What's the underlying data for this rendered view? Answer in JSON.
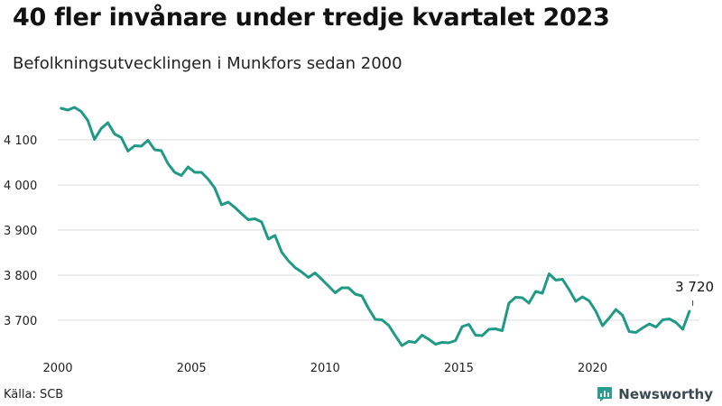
{
  "header": {
    "title": "40 fler invånare under tredje kvartalet 2023",
    "subtitle": "Befolkningsutvecklingen i Munkfors sedan 2000"
  },
  "footer": {
    "source": "Källa: SCB",
    "brand": "Newsworthy"
  },
  "colors": {
    "line": "#1f9a85",
    "grid": "#dcdcdc",
    "brand_icon": "#2a9d8f"
  },
  "chart_data": {
    "type": "line",
    "title": "40 fler invånare under tredje kvartalet 2023",
    "subtitle": "Befolkningsutvecklingen i Munkfors sedan 2000",
    "xlabel": "",
    "ylabel": "",
    "xlim": [
      2000,
      2024
    ],
    "ylim": [
      3620,
      4200
    ],
    "x_ticks": [
      2000,
      2005,
      2010,
      2015,
      2020
    ],
    "x_tick_labels": [
      "2000",
      "2005",
      "2010",
      "2015",
      "2020"
    ],
    "y_ticks": [
      3700,
      3800,
      3900,
      4000,
      4100
    ],
    "y_tick_labels": [
      "3 700",
      "3 800",
      "3 900",
      "4 000",
      "4 100"
    ],
    "grid": "horizontal",
    "annotation": {
      "x": 2023.75,
      "y": 3720,
      "text": "3 720"
    },
    "series": [
      {
        "frequency": "quarterly",
        "start": "2000-Q1",
        "values": [
          4170,
          4166,
          4172,
          4163,
          4143,
          4101,
          4125,
          4138,
          4113,
          4105,
          4075,
          4087,
          4086,
          4099,
          4078,
          4076,
          4047,
          4028,
          4021,
          4040,
          4028,
          4028,
          4013,
          3993,
          3956,
          3962,
          3950,
          3936,
          3923,
          3925,
          3918,
          3880,
          3888,
          3851,
          3832,
          3817,
          3807,
          3795,
          3805,
          3791,
          3776,
          3761,
          3772,
          3772,
          3758,
          3754,
          3726,
          3702,
          3701,
          3689,
          3666,
          3644,
          3653,
          3651,
          3667,
          3658,
          3647,
          3651,
          3650,
          3655,
          3686,
          3691,
          3667,
          3666,
          3680,
          3681,
          3677,
          3738,
          3751,
          3750,
          3738,
          3764,
          3760,
          3803,
          3789,
          3791,
          3768,
          3742,
          3752,
          3743,
          3720,
          3688,
          3705,
          3724,
          3711,
          3675,
          3673,
          3683,
          3692,
          3685,
          3701,
          3703,
          3695,
          3680,
          3720
        ]
      }
    ]
  }
}
